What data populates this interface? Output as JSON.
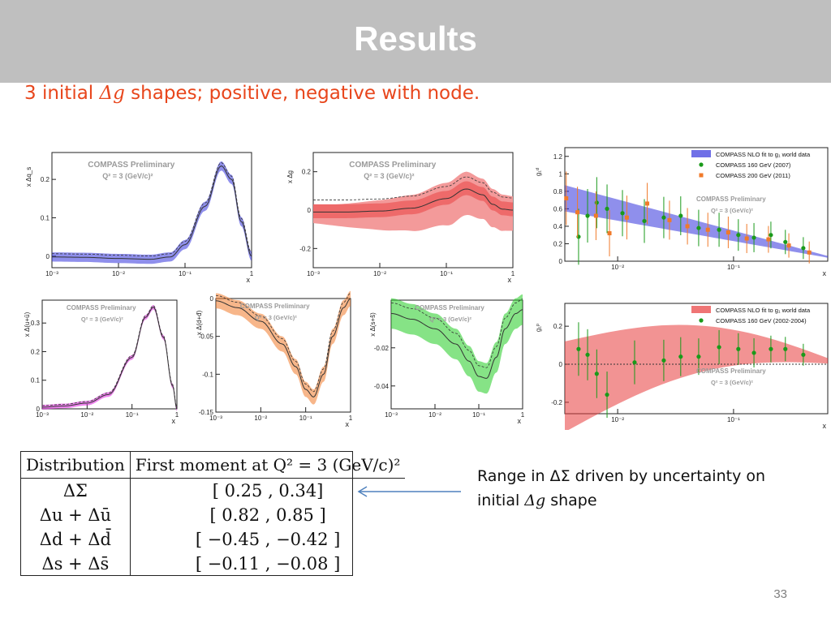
{
  "slide": {
    "title": "Results",
    "subtitle_prefix": "3 initial ",
    "subtitle_math": "Δg",
    "subtitle_suffix": " shapes; positive, negative with node.",
    "note_prefix": "Range in ΔΣ driven by uncertainty on initial ",
    "note_math": "Δg",
    "note_suffix": " shape",
    "page_number": "33"
  },
  "table": {
    "headers": [
      "Distribution",
      "First moment at Q² = 3 (GeV/c)²"
    ],
    "rows": [
      [
        "ΔΣ",
        "[    0.25 ,    0.34]"
      ],
      [
        "Δu + Δū",
        "[    0.82 ,    0.85 ]"
      ],
      [
        "Δd + Δd̄",
        "[ −0.45 , −0.42 ]"
      ],
      [
        "Δs + Δs̄",
        "[ −0.11 , −0.08 ]"
      ]
    ]
  },
  "colors": {
    "title_bar": "#bfbfbf",
    "subtitle": "#e8461c",
    "blue": "#3333dd",
    "red": "#e83a3a",
    "magenta": "#e020e0",
    "orange": "#f07a2a",
    "green": "#22cc22",
    "arrow": "#4f81bd"
  },
  "chart_data": [
    {
      "type": "area",
      "ylabel": "x Δq_s",
      "xlabel": "x",
      "xscale": "log",
      "xticks": [
        "10⁻³",
        "10⁻²",
        "10⁻¹",
        "1"
      ],
      "yticks": [
        "0",
        "0.1",
        "0.2"
      ],
      "ylim": [
        -0.03,
        0.27
      ],
      "annotations": [
        "COMPASS Preliminary",
        "Q² = 3 (GeV/c)²"
      ],
      "series": [
        {
          "x": [
            0.001,
            0.003,
            0.01,
            0.03,
            0.06,
            0.1,
            0.2,
            0.35,
            0.5,
            0.7,
            1.0
          ],
          "values": [
            -0.002,
            -0.003,
            -0.006,
            -0.008,
            -0.002,
            0.03,
            0.13,
            0.235,
            0.2,
            0.09,
            0.0
          ]
        }
      ]
    },
    {
      "type": "area",
      "ylabel": "x Δg",
      "xlabel": "x",
      "xscale": "log",
      "xticks": [
        "10⁻³",
        "10⁻²",
        "10⁻¹",
        "1"
      ],
      "yticks": [
        "-0.2",
        "0",
        "0.2"
      ],
      "ylim": [
        -0.3,
        0.3
      ],
      "annotations": [
        "COMPASS Preliminary",
        "Q² = 3 (GeV/c)²"
      ],
      "series": [
        {
          "x": [
            0.001,
            0.003,
            0.01,
            0.03,
            0.1,
            0.2,
            0.35,
            0.5,
            0.7,
            1.0
          ],
          "values": [
            -0.01,
            -0.01,
            -0.005,
            0.01,
            0.06,
            0.11,
            0.08,
            0.03,
            0.005,
            0.0
          ]
        }
      ]
    },
    {
      "type": "scatter",
      "ylabel": "g₁ᵈ",
      "xlabel": "x",
      "xscale": "log",
      "xticks": [
        "10⁻²",
        "10⁻¹"
      ],
      "yticks": [
        "0",
        "0.2",
        "0.4",
        "0.6",
        "0.8",
        "1",
        "1.2"
      ],
      "ylim": [
        0,
        1.3
      ],
      "legend": [
        "COMPASS NLO fit to g₁ world data",
        "COMPASS 160 GeV (2007)",
        "COMPASS 200 GeV (2011)"
      ],
      "annotations": [
        "COMPASS Preliminary",
        "Q² = 3 (GeV/c)²"
      ],
      "series": [
        {
          "name": "COMPASS 160 GeV (2007)",
          "x": [
            0.0046,
            0.0055,
            0.0066,
            0.0081,
            0.011,
            0.017,
            0.025,
            0.035,
            0.05,
            0.075,
            0.11,
            0.15,
            0.21,
            0.28,
            0.4
          ],
          "values": [
            0.28,
            0.52,
            0.67,
            0.6,
            0.55,
            0.46,
            0.5,
            0.52,
            0.38,
            0.36,
            0.3,
            0.27,
            0.3,
            0.22,
            0.15
          ]
        },
        {
          "name": "COMPASS 200 GeV (2011)",
          "x": [
            0.0036,
            0.0045,
            0.0065,
            0.0085,
            0.012,
            0.018,
            0.028,
            0.04,
            0.06,
            0.09,
            0.13,
            0.2,
            0.3,
            0.45
          ],
          "values": [
            0.72,
            0.56,
            0.52,
            0.32,
            0.5,
            0.66,
            0.47,
            0.4,
            0.36,
            0.33,
            0.26,
            0.25,
            0.18,
            0.1
          ]
        }
      ]
    },
    {
      "type": "area",
      "ylabel": "x Δ(u+ū)",
      "xlabel": "x",
      "xscale": "log",
      "xticks": [
        "10⁻³",
        "10⁻²",
        "10⁻¹",
        "1"
      ],
      "yticks": [
        "0",
        "0.1",
        "0.2",
        "0.3"
      ],
      "ylim": [
        0,
        0.38
      ],
      "annotations": [
        "COMPASS Preliminary",
        "Q² = 3 (GeV/c)²"
      ],
      "series": [
        {
          "x": [
            0.001,
            0.003,
            0.01,
            0.03,
            0.1,
            0.2,
            0.3,
            0.5,
            0.8,
            1.0
          ],
          "values": [
            0.006,
            0.01,
            0.02,
            0.05,
            0.18,
            0.32,
            0.355,
            0.25,
            0.08,
            0.0
          ]
        }
      ]
    },
    {
      "type": "area",
      "ylabel": "x Δ(d+đ)",
      "xlabel": "x",
      "xscale": "log",
      "xticks": [
        "10⁻³",
        "10⁻²",
        "10⁻¹",
        "1"
      ],
      "yticks": [
        "0",
        "-0.05",
        "-0.1",
        "-0.15"
      ],
      "ylim": [
        -0.15,
        0.0
      ],
      "annotations": [
        "COMPASS Preliminary",
        "Q² = 3 (GeV/c)²"
      ],
      "series": [
        {
          "x": [
            0.001,
            0.003,
            0.01,
            0.03,
            0.06,
            0.1,
            0.15,
            0.25,
            0.4,
            0.7,
            1.0
          ],
          "values": [
            -0.003,
            -0.012,
            -0.03,
            -0.06,
            -0.09,
            -0.12,
            -0.13,
            -0.1,
            -0.05,
            -0.012,
            0.0
          ]
        }
      ]
    },
    {
      "type": "area",
      "ylabel": "x Δ(s+ŝ)",
      "xlabel": "x",
      "xscale": "log",
      "xticks": [
        "10⁻³",
        "10⁻²",
        "10⁻¹",
        "1"
      ],
      "yticks": [
        "-0.02",
        "-0.04"
      ],
      "ylim": [
        -0.052,
        0.005
      ],
      "annotations": [
        "COMPASS Preliminary",
        "Q² = 3 (GeV/c)²"
      ],
      "series": [
        {
          "x": [
            0.001,
            0.003,
            0.01,
            0.03,
            0.06,
            0.1,
            0.15,
            0.25,
            0.4,
            0.7,
            1.0
          ],
          "values": [
            -0.002,
            -0.005,
            -0.01,
            -0.018,
            -0.027,
            -0.035,
            -0.036,
            -0.025,
            -0.01,
            -0.002,
            0.0
          ]
        }
      ]
    },
    {
      "type": "scatter",
      "ylabel": "g₁ᵖ",
      "xlabel": "x",
      "xscale": "log",
      "xticks": [
        "10⁻²",
        "10⁻¹"
      ],
      "yticks": [
        "-0.2",
        "0",
        "0.2"
      ],
      "ylim": [
        -0.26,
        0.32
      ],
      "legend": [
        "COMPASS NLO fit to g₁ world data",
        "COMPASS 160 GeV (2002-2004)"
      ],
      "annotations": [
        "COMPASS Preliminary",
        "Q² = 3 (GeV/c)²"
      ],
      "series": [
        {
          "name": "COMPASS 160 GeV (2002-2004)",
          "x": [
            0.0046,
            0.0055,
            0.0066,
            0.0081,
            0.014,
            0.025,
            0.035,
            0.05,
            0.075,
            0.11,
            0.15,
            0.21,
            0.28,
            0.4
          ],
          "values": [
            0.08,
            0.05,
            -0.05,
            -0.16,
            0.01,
            0.02,
            0.04,
            0.04,
            0.09,
            0.08,
            0.06,
            0.08,
            0.08,
            0.05
          ]
        }
      ]
    }
  ]
}
